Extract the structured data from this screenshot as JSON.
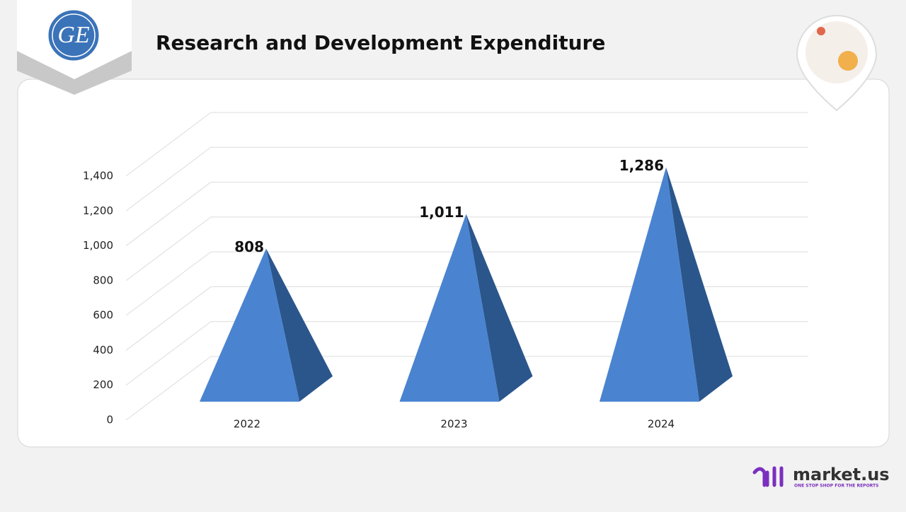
{
  "header": {
    "logo": "GE"
  },
  "footer": {
    "brand": "market.us",
    "tagline": "ONE STOP SHOP FOR THE REPORTS"
  },
  "chart_data": {
    "type": "pyramid",
    "title": "Research and Development Expenditure",
    "categories": [
      "2022",
      "2023",
      "2024"
    ],
    "values": [
      808,
      1011,
      1286
    ],
    "value_labels": [
      "808",
      "1,011",
      "1,286"
    ],
    "color": "#4a84d0",
    "side_color": "#2b568c",
    "ylim": [
      0,
      1400
    ],
    "yticks": [
      0,
      200,
      400,
      600,
      800,
      {
        "value": 1000,
        "label": "1,000"
      },
      {
        "value": 1200,
        "label": "1,200"
      },
      {
        "value": 1400,
        "label": "1,400"
      }
    ],
    "grid": true
  }
}
